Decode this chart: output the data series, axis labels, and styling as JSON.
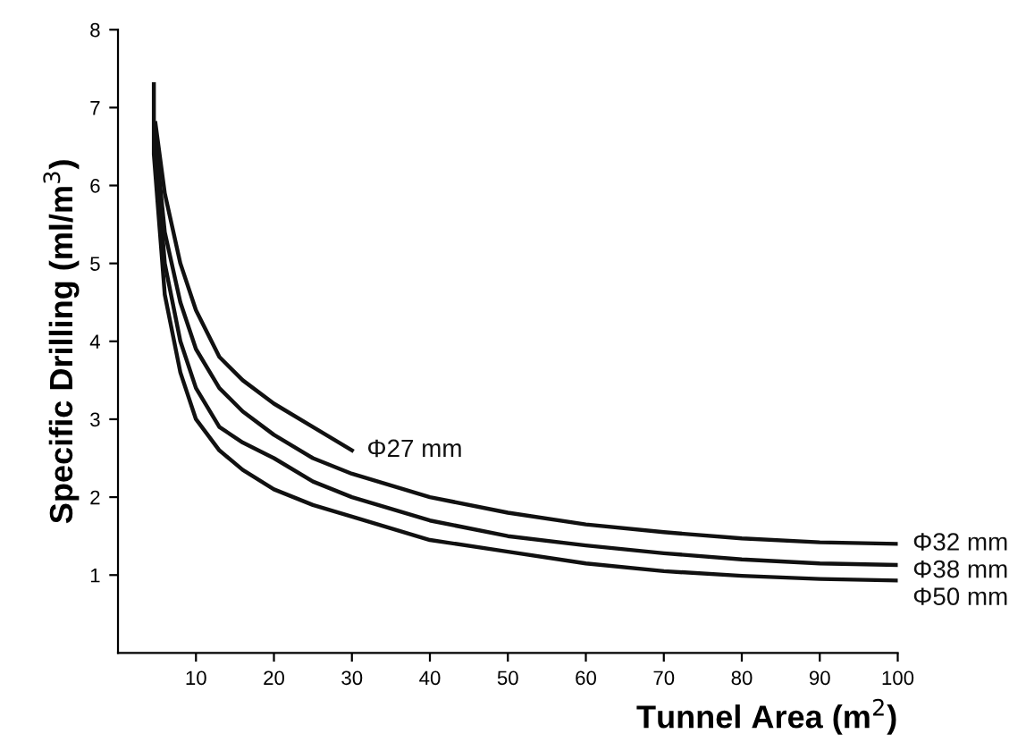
{
  "chart_data": {
    "type": "line",
    "xlabel": "Tunnel Area (m$^{2}$)",
    "ylabel": "Specific Drilling (ml/m$^{3}$)",
    "xlim": [
      0,
      100
    ],
    "ylim": [
      0,
      8
    ],
    "xticks": [
      10,
      20,
      30,
      40,
      50,
      60,
      70,
      80,
      90,
      100
    ],
    "yticks": [
      1,
      2,
      3,
      4,
      5,
      6,
      7,
      8
    ],
    "grid": false,
    "legend": false,
    "marker": "none",
    "line_style": "solid",
    "series": [
      {
        "name": "Φ27 mm",
        "color": "#111111",
        "x": [
          4.8,
          6,
          8,
          10,
          13,
          16,
          20,
          25,
          30
        ],
        "values": [
          6.8,
          5.9,
          5.0,
          4.4,
          3.8,
          3.5,
          3.2,
          2.9,
          2.6
        ]
      },
      {
        "name": "Φ32 mm",
        "color": "#111111",
        "x": [
          4.8,
          6,
          8,
          10,
          13,
          16,
          20,
          25,
          30,
          40,
          50,
          60,
          70,
          80,
          90,
          100
        ],
        "values": [
          6.6,
          5.4,
          4.5,
          3.9,
          3.4,
          3.1,
          2.8,
          2.5,
          2.3,
          2.0,
          1.8,
          1.65,
          1.55,
          1.47,
          1.42,
          1.4
        ]
      },
      {
        "name": "Φ38 mm",
        "color": "#111111",
        "x": [
          4.8,
          6,
          8,
          10,
          13,
          16,
          20,
          25,
          30,
          40,
          50,
          60,
          70,
          80,
          90,
          100
        ],
        "values": [
          6.5,
          5.0,
          4.0,
          3.4,
          2.9,
          2.7,
          2.5,
          2.2,
          2.0,
          1.7,
          1.5,
          1.38,
          1.28,
          1.2,
          1.15,
          1.13
        ]
      },
      {
        "name": "Φ50 mm",
        "color": "#111111",
        "x": [
          4.6,
          4.6,
          6,
          8,
          10,
          13,
          16,
          20,
          25,
          30,
          40,
          50,
          60,
          70,
          80,
          90,
          100
        ],
        "values": [
          7.3,
          6.4,
          4.6,
          3.6,
          3.0,
          2.6,
          2.35,
          2.1,
          1.9,
          1.75,
          1.45,
          1.3,
          1.15,
          1.05,
          0.99,
          0.95,
          0.93
        ]
      }
    ]
  }
}
